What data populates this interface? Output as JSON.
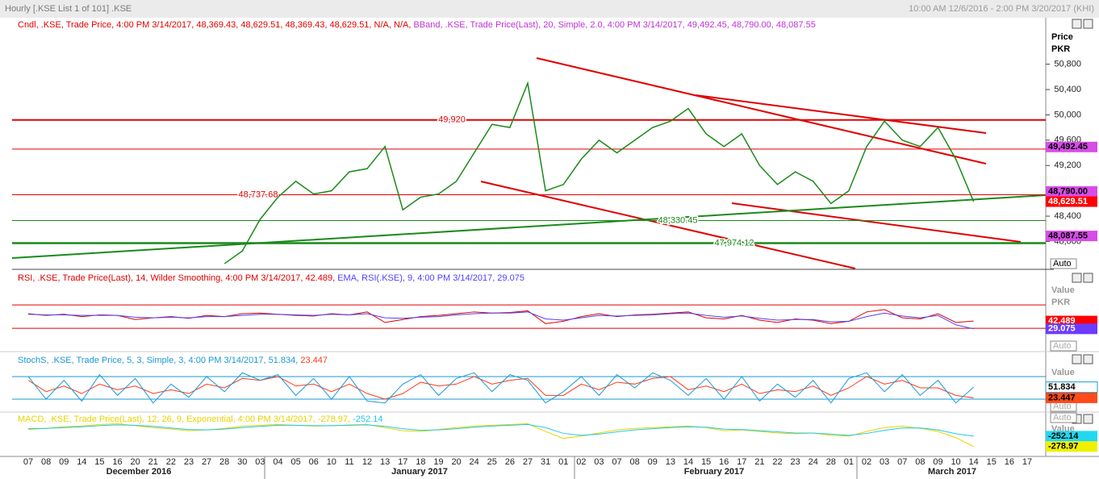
{
  "window": {
    "title": "Hourly [.KSE List 1 of 101] .KSE",
    "range": "10:00 AM 12/6/2016 - 2:00 PM 3/20/2017 (KHI)"
  },
  "x_axis": {
    "days": [
      "07",
      "08",
      "09",
      "14",
      "15",
      "16",
      "20",
      "21",
      "22",
      "23",
      "27",
      "28",
      "30",
      "03",
      "04",
      "05",
      "06",
      "10",
      "11",
      "12",
      "13",
      "17",
      "18",
      "19",
      "20",
      "24",
      "25",
      "26",
      "27",
      "31",
      "01",
      "02",
      "03",
      "07",
      "08",
      "09",
      "13",
      "14",
      "15",
      "16",
      "17",
      "21",
      "22",
      "23",
      "24",
      "28",
      "01",
      "02",
      "03",
      "07",
      "08",
      "09",
      "10",
      "14",
      "15",
      "16",
      "17"
    ],
    "months": [
      "December 2016",
      "January 2017",
      "February 2017",
      "March 2017"
    ]
  },
  "price_panel": {
    "legend": [
      "Cndl, .KSE, Trade Price, 4:00 PM 3/14/2017, 48,369.43, 48,629.51, 48,369.43, 48,629.51, N/A, N/A,",
      "BBand, .KSE, Trade Price(Last),  20, Simple, 2.0,  4:00 PM 3/14/2017, 49,492.45, 48,790.00, 48,087.55"
    ],
    "axis_title": [
      "Price",
      "PKR"
    ],
    "auto": "Auto",
    "ylim": [
      47560,
      51330
    ],
    "yticks": [
      {
        "value": 48000,
        "label": "48,000"
      },
      {
        "value": 48400,
        "label": "48,400"
      },
      {
        "value": 48800,
        "label": "48,800"
      },
      {
        "value": 49200,
        "label": "49,200"
      },
      {
        "value": 49600,
        "label": "49,600"
      },
      {
        "value": 50000,
        "label": "50,000"
      },
      {
        "value": 50400,
        "label": "50,400"
      },
      {
        "value": 50800,
        "label": "50,800"
      }
    ],
    "closes": [
      null,
      null,
      null,
      null,
      null,
      null,
      null,
      null,
      null,
      null,
      null,
      47650,
      47850,
      48350,
      48700,
      48950,
      48750,
      48800,
      49100,
      49150,
      49500,
      48500,
      48700,
      48750,
      48950,
      49400,
      49850,
      49800,
      50500,
      48800,
      48900,
      49300,
      49600,
      49400,
      49600,
      49800,
      49900,
      50100,
      49700,
      49500,
      49700,
      49200,
      48900,
      49100,
      48950,
      48600,
      48800,
      49500,
      49900,
      49600,
      49500,
      49800,
      49300,
      48629.51,
      null,
      null,
      null
    ],
    "close_color": "#1a8a1a",
    "levels": [
      {
        "value": 49920,
        "label": "49,920",
        "color": "#e00000"
      },
      {
        "value": 48737.68,
        "label": "48,737.68",
        "color": "#e00000"
      },
      {
        "value": 48330.45,
        "label": "48,330.45",
        "color": "#1a8a1a"
      },
      {
        "value": 47974.12,
        "label": "47,974.12",
        "color": "#1a8a1a"
      }
    ],
    "unlabeled_levels": [
      49460
    ],
    "badges": [
      {
        "value": 49492.45,
        "label": "49,492.45",
        "color": "#d84ce8"
      },
      {
        "value": 48790.0,
        "label": "48,790.00",
        "color": "#d84ce8"
      },
      {
        "value": 48629.51,
        "label": "48,629.51",
        "color": "#ff0000"
      },
      {
        "value": 48087.55,
        "label": "48,087.55",
        "color": "#d84ce8"
      }
    ]
  },
  "rsi_panel": {
    "legend": [
      "RSI, .KSE, Trade Price(Last),  14, Wilder Smoothing,  4:00 PM 3/14/2017, 42.489,",
      "EMA, RSI(.KSE),  9,  4:00 PM 3/14/2017, 29.075"
    ],
    "axis_title": [
      "Value",
      "PKR"
    ],
    "auto": "Auto",
    "ylim": [
      -7,
      128
    ],
    "levels": [
      70,
      30
    ],
    "rsi": [
      55,
      52,
      54,
      50,
      53,
      52,
      45,
      48,
      50,
      47,
      52,
      50,
      55,
      56,
      54,
      52,
      51,
      55,
      53,
      58,
      40,
      45,
      50,
      52,
      55,
      58,
      56,
      57,
      60,
      38,
      42,
      50,
      55,
      50,
      53,
      54,
      56,
      58,
      48,
      46,
      52,
      44,
      40,
      46,
      44,
      38,
      42,
      58,
      62,
      48,
      46,
      55,
      40,
      42.489,
      null,
      null,
      null
    ],
    "ema": [
      54,
      53,
      53,
      52,
      52,
      52,
      49,
      48,
      49,
      48,
      50,
      50,
      52,
      54,
      54,
      53,
      52,
      54,
      53,
      55,
      48,
      47,
      49,
      50,
      53,
      55,
      56,
      56,
      58,
      46,
      44,
      48,
      52,
      51,
      52,
      53,
      55,
      56,
      52,
      49,
      51,
      47,
      44,
      45,
      45,
      41,
      42,
      50,
      56,
      51,
      48,
      52,
      36,
      29.075,
      null,
      null,
      null
    ],
    "colors": [
      "#e00000",
      "#5040ff"
    ],
    "badges": [
      {
        "value": 42.489,
        "label": "42.489",
        "color": "#ff0000"
      },
      {
        "value": 29.075,
        "label": "29.075",
        "color": "#6a3cff"
      }
    ]
  },
  "stoch_panel": {
    "legend": [
      "StochS, .KSE, Trade Price,  5, 3, Simple, 3,  4:00 PM 3/14/2017, 51.834,",
      "23.447"
    ],
    "axis_title": [
      "Value"
    ],
    "auto": "Auto",
    "ylim": [
      -12,
      144
    ],
    "levels": [
      80,
      20
    ],
    "k": [
      80,
      20,
      70,
      15,
      85,
      30,
      75,
      10,
      60,
      25,
      80,
      40,
      90,
      70,
      85,
      30,
      75,
      20,
      80,
      15,
      10,
      60,
      85,
      30,
      75,
      90,
      40,
      85,
      70,
      10,
      40,
      80,
      30,
      85,
      50,
      90,
      70,
      30,
      75,
      20,
      80,
      15,
      60,
      25,
      70,
      10,
      75,
      90,
      40,
      85,
      30,
      70,
      10,
      51.834,
      null,
      null,
      null
    ],
    "d": [
      70,
      40,
      55,
      35,
      60,
      45,
      55,
      35,
      45,
      35,
      60,
      50,
      75,
      70,
      80,
      55,
      60,
      40,
      60,
      35,
      20,
      35,
      65,
      55,
      60,
      80,
      60,
      70,
      75,
      30,
      30,
      60,
      45,
      65,
      60,
      75,
      80,
      45,
      55,
      40,
      60,
      35,
      45,
      40,
      55,
      30,
      50,
      80,
      60,
      70,
      50,
      50,
      30,
      23.447,
      null,
      null,
      null
    ],
    "colors": [
      "#1a9ad6",
      "#ff3a1a"
    ],
    "badges": [
      {
        "value": 51.834,
        "label": "51.834",
        "color": "#ffffff"
      },
      {
        "value": 23.447,
        "label": "23.447",
        "color": "#ff4a1a"
      }
    ]
  },
  "macd_panel": {
    "legend": [
      "MACD, .KSE, Trade Price(Last),  12, 26, 9, Exponential,  4:00 PM 3/14/2017, -278.97,",
      "-252.14"
    ],
    "axis_title": [
      "Value"
    ],
    "auto": "Auto",
    "ylim": [
      -292,
      -192
    ],
    "macd": [
      -235,
      -232,
      -228,
      -226,
      -222,
      -220,
      -225,
      -230,
      -234,
      -238,
      -236,
      -232,
      -226,
      -224,
      -222,
      -224,
      -226,
      -225,
      -223,
      -222,
      -230,
      -238,
      -240,
      -235,
      -230,
      -226,
      -224,
      -222,
      -220,
      -240,
      -258,
      -252,
      -244,
      -236,
      -232,
      -230,
      -228,
      -226,
      -230,
      -238,
      -236,
      -240,
      -244,
      -246,
      -244,
      -250,
      -252,
      -240,
      -230,
      -226,
      -232,
      -240,
      -256,
      -278.97,
      null,
      null,
      null
    ],
    "signal": [
      -233,
      -232,
      -230,
      -228,
      -225,
      -223,
      -224,
      -227,
      -231,
      -235,
      -236,
      -234,
      -230,
      -227,
      -224,
      -224,
      -225,
      -225,
      -224,
      -223,
      -227,
      -233,
      -237,
      -236,
      -233,
      -229,
      -226,
      -224,
      -222,
      -230,
      -245,
      -250,
      -247,
      -241,
      -236,
      -233,
      -230,
      -228,
      -229,
      -234,
      -235,
      -238,
      -241,
      -244,
      -244,
      -247,
      -250,
      -245,
      -237,
      -231,
      -231,
      -236,
      -246,
      -252.14,
      null,
      null,
      null
    ],
    "colors": [
      "#e8d400",
      "#22c8e8"
    ],
    "badges": [
      {
        "value": -252.14,
        "label": "-252.14",
        "color": "#22d8f0"
      },
      {
        "value": -278.97,
        "label": "-278.97",
        "color": "#f0f000"
      }
    ]
  }
}
